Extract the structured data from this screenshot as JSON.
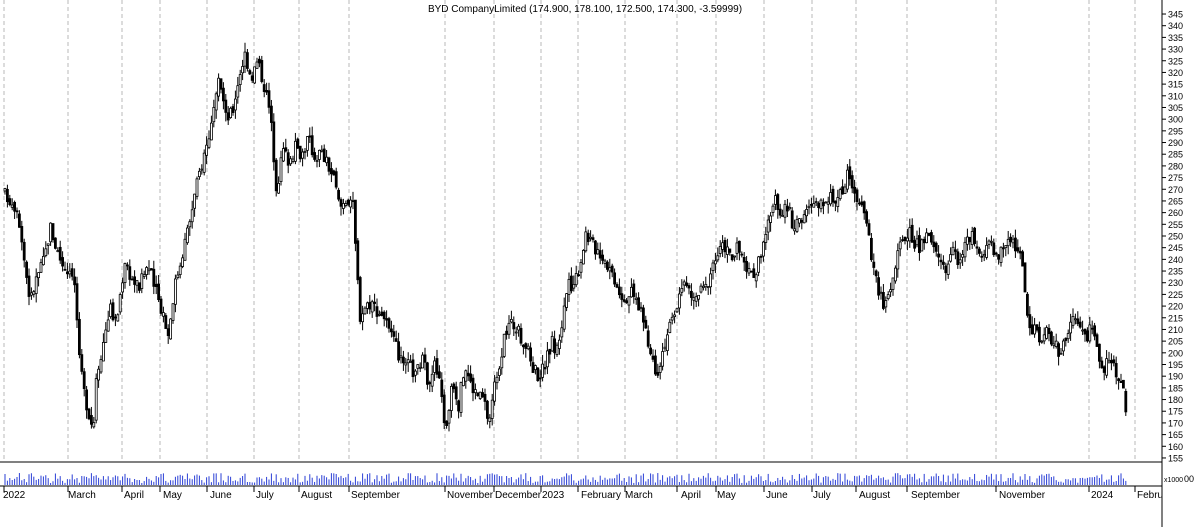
{
  "chart_data": {
    "type": "candlestick",
    "title": "BYD CompanyLimited (174.900, 178.100, 172.500, 174.300, -3.59999)",
    "last_bar": {
      "open": 174.9,
      "high": 178.1,
      "low": 172.5,
      "close": 174.3,
      "change": -3.59999
    },
    "ylim": [
      143,
      351
    ],
    "yticks": [
      150,
      155,
      160,
      165,
      170,
      175,
      180,
      185,
      190,
      195,
      200,
      205,
      210,
      215,
      220,
      225,
      230,
      235,
      240,
      245,
      250,
      255,
      260,
      265,
      270,
      275,
      280,
      285,
      290,
      295,
      300,
      305,
      310,
      315,
      320,
      325,
      330,
      335,
      340,
      345
    ],
    "y_axis_side": "right",
    "grid": {
      "vertical": true,
      "horizontal": false,
      "style": "dashed"
    },
    "volume_unit_label": "x1000",
    "volume_axis_tick": "00",
    "month_labels": [
      "2022",
      "March",
      "April",
      "May",
      "June",
      "July",
      "August",
      "September",
      "November",
      "December",
      "2023",
      "February",
      "March",
      "April",
      "May",
      "June",
      "July",
      "August",
      "September",
      "November",
      "2024",
      "Febru"
    ],
    "close_path": [
      {
        "x": 0.0,
        "y": 268
      },
      {
        "x": 1.0,
        "y": 262
      },
      {
        "x": 1.6,
        "y": 237
      },
      {
        "x": 2.0,
        "y": 222
      },
      {
        "x": 2.5,
        "y": 232
      },
      {
        "x": 3.1,
        "y": 240
      },
      {
        "x": 3.6,
        "y": 254
      },
      {
        "x": 4.0,
        "y": 246
      },
      {
        "x": 4.4,
        "y": 240
      },
      {
        "x": 4.8,
        "y": 236
      },
      {
        "x": 5.3,
        "y": 236
      },
      {
        "x": 5.6,
        "y": 225
      },
      {
        "x": 5.85,
        "y": 198
      },
      {
        "x": 6.2,
        "y": 185
      },
      {
        "x": 6.6,
        "y": 175
      },
      {
        "x": 7.0,
        "y": 168
      },
      {
        "x": 7.2,
        "y": 190
      },
      {
        "x": 7.8,
        "y": 205
      },
      {
        "x": 8.3,
        "y": 220
      },
      {
        "x": 8.8,
        "y": 212
      },
      {
        "x": 9.5,
        "y": 240
      },
      {
        "x": 10.0,
        "y": 232
      },
      {
        "x": 10.6,
        "y": 228
      },
      {
        "x": 11.3,
        "y": 238
      },
      {
        "x": 12.0,
        "y": 225
      },
      {
        "x": 12.6,
        "y": 216
      },
      {
        "x": 12.9,
        "y": 207
      },
      {
        "x": 13.4,
        "y": 228
      },
      {
        "x": 14.0,
        "y": 242
      },
      {
        "x": 14.6,
        "y": 256
      },
      {
        "x": 15.3,
        "y": 275
      },
      {
        "x": 16.0,
        "y": 290
      },
      {
        "x": 16.6,
        "y": 304
      },
      {
        "x": 17.0,
        "y": 318
      },
      {
        "x": 17.5,
        "y": 300
      },
      {
        "x": 18.0,
        "y": 303
      },
      {
        "x": 18.5,
        "y": 318
      },
      {
        "x": 19.0,
        "y": 328
      },
      {
        "x": 19.5,
        "y": 318
      },
      {
        "x": 20.0,
        "y": 325
      },
      {
        "x": 20.6,
        "y": 313
      },
      {
        "x": 21.0,
        "y": 302
      },
      {
        "x": 21.5,
        "y": 270
      },
      {
        "x": 22.0,
        "y": 287
      },
      {
        "x": 22.5,
        "y": 282
      },
      {
        "x": 23.0,
        "y": 288
      },
      {
        "x": 23.5,
        "y": 285
      },
      {
        "x": 24.0,
        "y": 292
      },
      {
        "x": 24.5,
        "y": 284
      },
      {
        "x": 25.0,
        "y": 286
      },
      {
        "x": 25.6,
        "y": 280
      },
      {
        "x": 26.0,
        "y": 275
      },
      {
        "x": 26.5,
        "y": 262
      },
      {
        "x": 27.0,
        "y": 266
      },
      {
        "x": 27.5,
        "y": 266
      },
      {
        "x": 27.8,
        "y": 240
      },
      {
        "x": 28.1,
        "y": 216
      },
      {
        "x": 28.5,
        "y": 220
      },
      {
        "x": 29.0,
        "y": 222
      },
      {
        "x": 29.5,
        "y": 218
      },
      {
        "x": 30.0,
        "y": 216
      },
      {
        "x": 30.5,
        "y": 207
      },
      {
        "x": 31.0,
        "y": 202
      },
      {
        "x": 31.5,
        "y": 193
      },
      {
        "x": 32.0,
        "y": 195
      },
      {
        "x": 32.5,
        "y": 190
      },
      {
        "x": 33.0,
        "y": 198
      },
      {
        "x": 33.5,
        "y": 188
      },
      {
        "x": 34.0,
        "y": 195
      },
      {
        "x": 34.5,
        "y": 185
      },
      {
        "x": 34.9,
        "y": 165
      },
      {
        "x": 35.4,
        "y": 190
      },
      {
        "x": 35.9,
        "y": 178
      },
      {
        "x": 36.4,
        "y": 195
      },
      {
        "x": 36.9,
        "y": 186
      },
      {
        "x": 37.4,
        "y": 182
      },
      {
        "x": 37.9,
        "y": 180
      },
      {
        "x": 38.3,
        "y": 170
      },
      {
        "x": 38.8,
        "y": 188
      },
      {
        "x": 39.3,
        "y": 200
      },
      {
        "x": 39.8,
        "y": 212
      },
      {
        "x": 40.3,
        "y": 212
      },
      {
        "x": 40.8,
        "y": 207
      },
      {
        "x": 41.3,
        "y": 202
      },
      {
        "x": 41.8,
        "y": 194
      },
      {
        "x": 42.3,
        "y": 190
      },
      {
        "x": 42.8,
        "y": 196
      },
      {
        "x": 43.3,
        "y": 205
      },
      {
        "x": 43.6,
        "y": 200
      },
      {
        "x": 44.0,
        "y": 210
      },
      {
        "x": 44.5,
        "y": 228
      },
      {
        "x": 45.0,
        "y": 230
      },
      {
        "x": 45.5,
        "y": 238
      },
      {
        "x": 46.0,
        "y": 252
      },
      {
        "x": 46.5,
        "y": 246
      },
      {
        "x": 47.0,
        "y": 244
      },
      {
        "x": 47.5,
        "y": 240
      },
      {
        "x": 48.0,
        "y": 235
      },
      {
        "x": 48.5,
        "y": 229
      },
      {
        "x": 49.0,
        "y": 223
      },
      {
        "x": 49.5,
        "y": 226
      },
      {
        "x": 50.0,
        "y": 222
      },
      {
        "x": 50.4,
        "y": 218
      },
      {
        "x": 50.8,
        "y": 205
      },
      {
        "x": 51.2,
        "y": 198
      },
      {
        "x": 51.6,
        "y": 192
      },
      {
        "x": 52.0,
        "y": 200
      },
      {
        "x": 52.5,
        "y": 210
      },
      {
        "x": 53.0,
        "y": 215
      },
      {
        "x": 53.5,
        "y": 230
      },
      {
        "x": 54.0,
        "y": 228
      },
      {
        "x": 54.5,
        "y": 222
      },
      {
        "x": 55.0,
        "y": 226
      },
      {
        "x": 55.5,
        "y": 228
      },
      {
        "x": 56.0,
        "y": 238
      },
      {
        "x": 56.5,
        "y": 243
      },
      {
        "x": 57.0,
        "y": 246
      },
      {
        "x": 57.5,
        "y": 240
      },
      {
        "x": 58.0,
        "y": 245
      },
      {
        "x": 58.5,
        "y": 238
      },
      {
        "x": 59.0,
        "y": 232
      },
      {
        "x": 59.5,
        "y": 236
      },
      {
        "x": 60.0,
        "y": 248
      },
      {
        "x": 60.5,
        "y": 256
      },
      {
        "x": 61.0,
        "y": 265
      },
      {
        "x": 61.5,
        "y": 260
      },
      {
        "x": 62.0,
        "y": 262
      },
      {
        "x": 62.5,
        "y": 252
      },
      {
        "x": 63.0,
        "y": 258
      },
      {
        "x": 63.5,
        "y": 260
      },
      {
        "x": 64.0,
        "y": 264
      },
      {
        "x": 64.5,
        "y": 262
      },
      {
        "x": 65.0,
        "y": 268
      },
      {
        "x": 65.5,
        "y": 265
      },
      {
        "x": 66.0,
        "y": 268
      },
      {
        "x": 66.5,
        "y": 272
      },
      {
        "x": 66.8,
        "y": 278
      },
      {
        "x": 67.2,
        "y": 270
      },
      {
        "x": 67.7,
        "y": 262
      },
      {
        "x": 68.2,
        "y": 258
      },
      {
        "x": 68.5,
        "y": 244
      },
      {
        "x": 69.0,
        "y": 230
      },
      {
        "x": 69.5,
        "y": 220
      },
      {
        "x": 70.0,
        "y": 226
      },
      {
        "x": 70.5,
        "y": 238
      },
      {
        "x": 71.0,
        "y": 248
      },
      {
        "x": 71.5,
        "y": 252
      },
      {
        "x": 72.0,
        "y": 247
      },
      {
        "x": 72.5,
        "y": 245
      },
      {
        "x": 73.0,
        "y": 250
      },
      {
        "x": 73.5,
        "y": 245
      },
      {
        "x": 74.0,
        "y": 240
      },
      {
        "x": 74.5,
        "y": 236
      },
      {
        "x": 75.0,
        "y": 244
      },
      {
        "x": 75.5,
        "y": 240
      },
      {
        "x": 76.0,
        "y": 246
      },
      {
        "x": 76.5,
        "y": 250
      },
      {
        "x": 77.0,
        "y": 242
      },
      {
        "x": 77.5,
        "y": 240
      },
      {
        "x": 78.0,
        "y": 248
      },
      {
        "x": 78.5,
        "y": 242
      },
      {
        "x": 79.0,
        "y": 244
      },
      {
        "x": 79.5,
        "y": 250
      },
      {
        "x": 80.0,
        "y": 246
      },
      {
        "x": 80.5,
        "y": 238
      },
      {
        "x": 80.8,
        "y": 222
      },
      {
        "x": 81.2,
        "y": 208
      },
      {
        "x": 81.6,
        "y": 212
      },
      {
        "x": 82.0,
        "y": 205
      },
      {
        "x": 82.5,
        "y": 210
      },
      {
        "x": 83.0,
        "y": 204
      },
      {
        "x": 83.5,
        "y": 200
      },
      {
        "x": 84.0,
        "y": 205
      },
      {
        "x": 84.4,
        "y": 215
      },
      {
        "x": 84.8,
        "y": 212
      },
      {
        "x": 85.2,
        "y": 210
      },
      {
        "x": 85.6,
        "y": 206
      },
      {
        "x": 86.0,
        "y": 212
      },
      {
        "x": 86.5,
        "y": 200
      },
      {
        "x": 87.0,
        "y": 194
      },
      {
        "x": 87.5,
        "y": 198
      },
      {
        "x": 88.0,
        "y": 192
      },
      {
        "x": 88.5,
        "y": 184
      },
      {
        "x": 88.8,
        "y": 174.3
      }
    ]
  }
}
